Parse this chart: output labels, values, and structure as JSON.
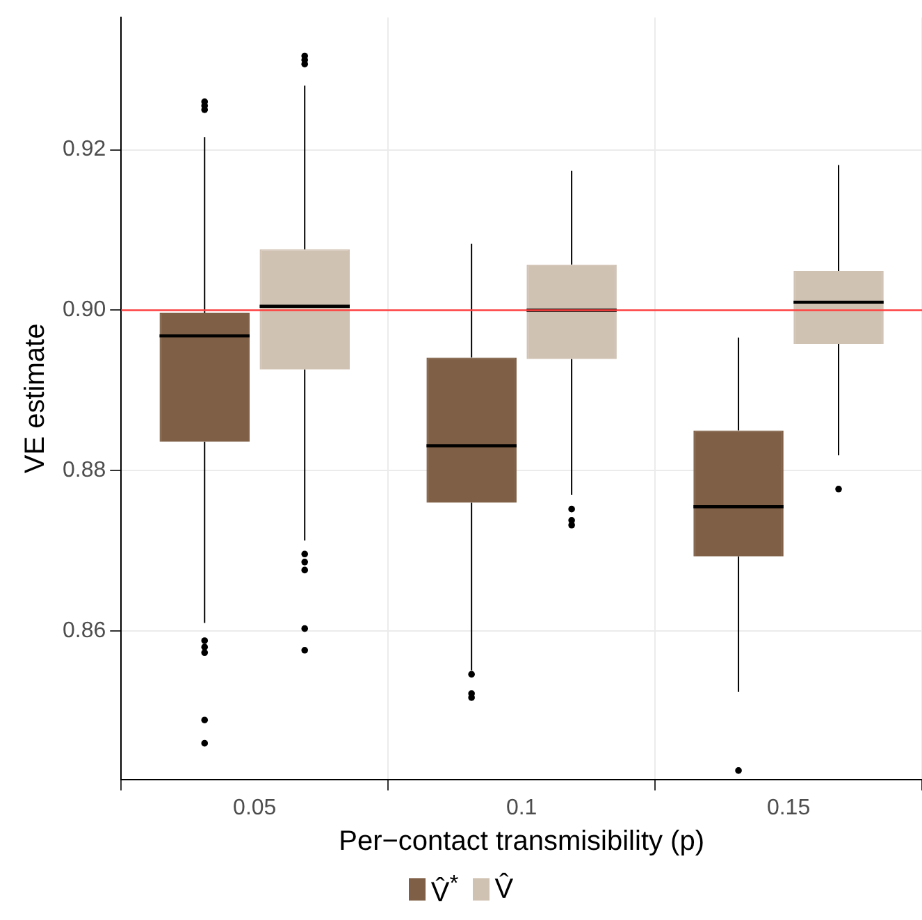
{
  "chart_data": {
    "type": "box",
    "xlabel": "Per−contact transmisibility (p)",
    "ylabel": "VE estimate",
    "categories": [
      "0.05",
      "0.1",
      "0.15"
    ],
    "ylim": [
      0.8415,
      0.9365
    ],
    "yticks": [
      0.86,
      0.88,
      {
        "value": 0.9,
        "label": "0.90"
      },
      0.92
    ],
    "grid": true,
    "legend": "bottom",
    "series": [
      {
        "name": "V̂$^{*}$",
        "color": "#7f5f45",
        "boxes": [
          {
            "low": 0.861,
            "q1": 0.8836,
            "median": 0.8968,
            "q3": 0.8997,
            "high": 0.9216,
            "outliers": [
              0.926,
              0.9255,
              0.925,
              0.8588,
              0.858,
              0.8573,
              0.8489,
              0.846
            ]
          },
          {
            "low": 0.8551,
            "q1": 0.876,
            "median": 0.8831,
            "q3": 0.8941,
            "high": 0.9083,
            "outliers": [
              0.8546,
              0.8522,
              0.8517
            ]
          },
          {
            "low": 0.8524,
            "q1": 0.8693,
            "median": 0.8755,
            "q3": 0.885,
            "high": 0.8966,
            "outliers": [
              0.8426
            ]
          }
        ]
      },
      {
        "name": "V̂",
        "color": "#d0c2b3",
        "boxes": [
          {
            "low": 0.8713,
            "q1": 0.8926,
            "median": 0.9005,
            "q3": 0.9076,
            "high": 0.928,
            "outliers": [
              0.9317,
              0.9312,
              0.9307,
              0.8696,
              0.8686,
              0.8676,
              0.8603,
              0.8576
            ]
          },
          {
            "low": 0.877,
            "q1": 0.8939,
            "median": 0.9,
            "q3": 0.9057,
            "high": 0.9174,
            "outliers": [
              0.8752,
              0.8738,
              0.8732
            ]
          },
          {
            "low": 0.8819,
            "q1": 0.8958,
            "median": 0.901,
            "q3": 0.9049,
            "high": 0.9181,
            "outliers": [
              0.8777
            ]
          }
        ]
      }
    ],
    "ref_lines": [
      {
        "axis": "y",
        "value": 0.9,
        "color": "#ff4040"
      }
    ]
  }
}
